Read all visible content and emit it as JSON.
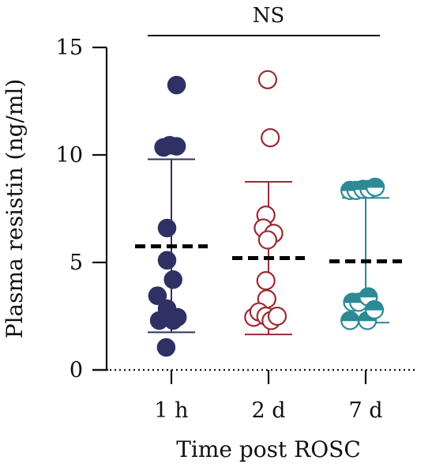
{
  "chart_data": {
    "type": "scatter",
    "ylabel": "Plasma resistin (ng/ml)",
    "xlabel": "Time post ROSC",
    "categories": [
      "1 h",
      "2 d",
      "7 d"
    ],
    "ylim": [
      0,
      15
    ],
    "yticks": [
      0,
      5,
      10,
      15
    ],
    "significance": "NS",
    "grid": false,
    "series": [
      {
        "category": "1 h",
        "marker": "filled",
        "color": "#2f3063",
        "median": 5.75,
        "whisker": [
          1.75,
          9.8
        ],
        "points": [
          {
            "offset": 0.3,
            "y": 13.25
          },
          {
            "offset": -0.45,
            "y": 10.35
          },
          {
            "offset": -0.1,
            "y": 10.45
          },
          {
            "offset": 0.3,
            "y": 10.4
          },
          {
            "offset": -0.25,
            "y": 6.6
          },
          {
            "offset": -0.25,
            "y": 5.1
          },
          {
            "offset": 0.1,
            "y": 4.2
          },
          {
            "offset": -0.8,
            "y": 3.45
          },
          {
            "offset": -0.25,
            "y": 2.85
          },
          {
            "offset": -0.7,
            "y": 2.3
          },
          {
            "offset": 0.1,
            "y": 2.3
          },
          {
            "offset": 0.35,
            "y": 2.45
          },
          {
            "offset": -0.3,
            "y": 1.05
          }
        ]
      },
      {
        "category": "2 d",
        "marker": "open",
        "color": "#9b2b33",
        "median": 5.2,
        "whisker": [
          1.65,
          8.75
        ],
        "points": [
          {
            "offset": -0.05,
            "y": 13.5
          },
          {
            "offset": 0.1,
            "y": 10.8
          },
          {
            "offset": -0.15,
            "y": 7.2
          },
          {
            "offset": -0.3,
            "y": 6.6
          },
          {
            "offset": 0.3,
            "y": 6.35
          },
          {
            "offset": -0.05,
            "y": 6.05
          },
          {
            "offset": -0.15,
            "y": 4.15
          },
          {
            "offset": -0.1,
            "y": 3.3
          },
          {
            "offset": -0.85,
            "y": 2.45
          },
          {
            "offset": -0.55,
            "y": 2.7
          },
          {
            "offset": -0.15,
            "y": 2.5
          },
          {
            "offset": 0.15,
            "y": 2.3
          },
          {
            "offset": 0.5,
            "y": 2.5
          }
        ]
      },
      {
        "category": "7 d",
        "marker": "half",
        "color": "#2b8a96",
        "median": 5.05,
        "whisker": [
          2.2,
          8.0
        ],
        "points": [
          {
            "offset": -0.9,
            "y": 8.35
          },
          {
            "offset": -0.55,
            "y": 8.35
          },
          {
            "offset": -0.15,
            "y": 8.4
          },
          {
            "offset": 0.2,
            "y": 8.4
          },
          {
            "offset": 0.55,
            "y": 8.5
          },
          {
            "offset": -0.75,
            "y": 3.15
          },
          {
            "offset": -0.4,
            "y": 3.15
          },
          {
            "offset": 0.15,
            "y": 3.4
          },
          {
            "offset": -0.9,
            "y": 2.3
          },
          {
            "offset": 0.1,
            "y": 2.3
          },
          {
            "offset": 0.5,
            "y": 2.8
          }
        ]
      }
    ]
  }
}
